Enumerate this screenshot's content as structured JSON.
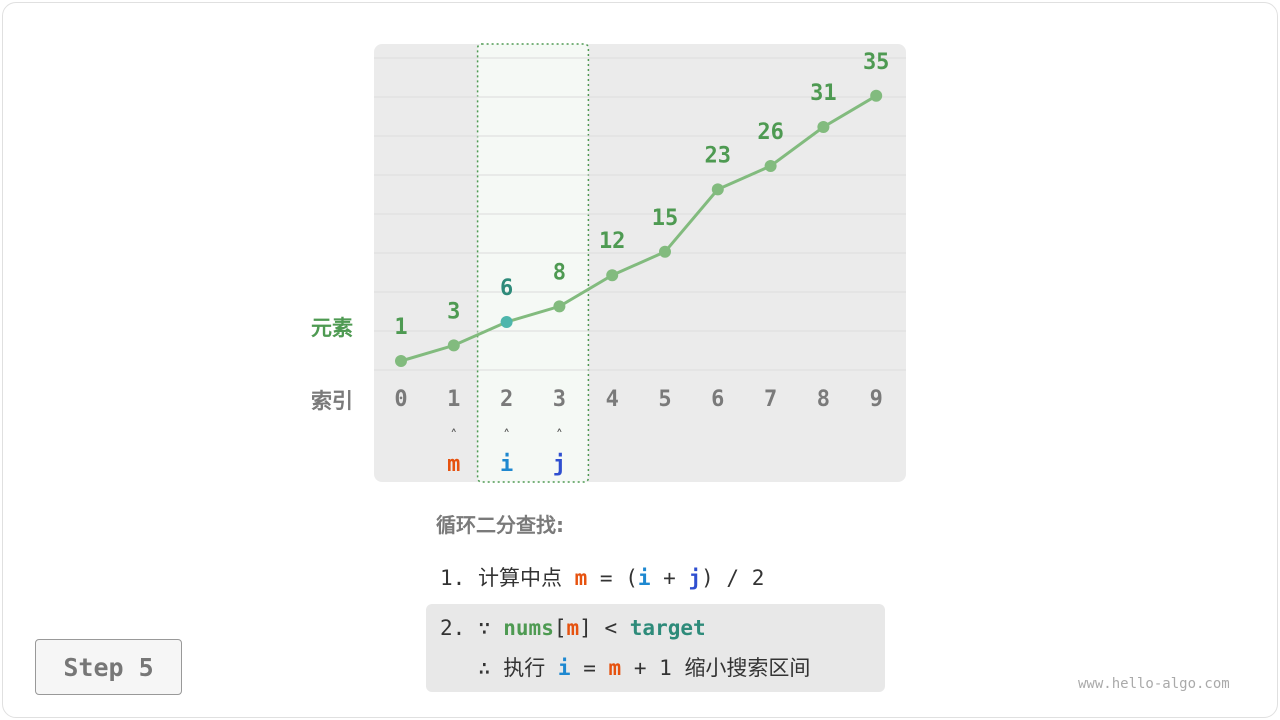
{
  "chart_data": {
    "type": "line",
    "indices": [
      0,
      1,
      2,
      3,
      4,
      5,
      6,
      7,
      8,
      9
    ],
    "values": [
      1,
      3,
      6,
      8,
      12,
      15,
      23,
      26,
      31,
      35
    ],
    "row_label_values": "元素",
    "row_label_indices": "索引",
    "highlight_range": [
      2,
      3
    ],
    "highlight_point": 2,
    "pointers": [
      {
        "index": 1,
        "label": "m",
        "color": "#e6520f"
      },
      {
        "index": 2,
        "label": "i",
        "color": "#1e88d0"
      },
      {
        "index": 3,
        "label": "j",
        "color": "#2f4fd0"
      }
    ],
    "pointer_glyph": "⋏"
  },
  "colors": {
    "green": "#4e9a52",
    "line": "#82bb7e",
    "teal": "#4db6ac",
    "gray": "#7a7a7a",
    "orange": "#e6520f",
    "blue": "#1e88d0",
    "indigo": "#2f4fd0",
    "target": "#2e8b7a"
  },
  "text": {
    "heading": "循环二分查找:",
    "l1_num": "1.",
    "l1_a": "计算中点",
    "l1_m": "m",
    "l1_b": "= (",
    "l1_i": "i",
    "l1_c": "+",
    "l1_j": "j",
    "l1_d": ") / 2",
    "l2_num": "2.",
    "l2_because": "∵",
    "l2_nums": "nums",
    "l2_lb": "[",
    "l2_m": "m",
    "l2_rb": "]",
    "l2_lt": "<",
    "l2_target": "target",
    "l3_therefore": "∴",
    "l3_a": "执行",
    "l3_i": "i",
    "l3_eq": "=",
    "l3_m": "m",
    "l3_b": "+ 1",
    "l3_c": "缩小搜索区间"
  },
  "step_label": "Step 5",
  "watermark": "www.hello-algo.com"
}
